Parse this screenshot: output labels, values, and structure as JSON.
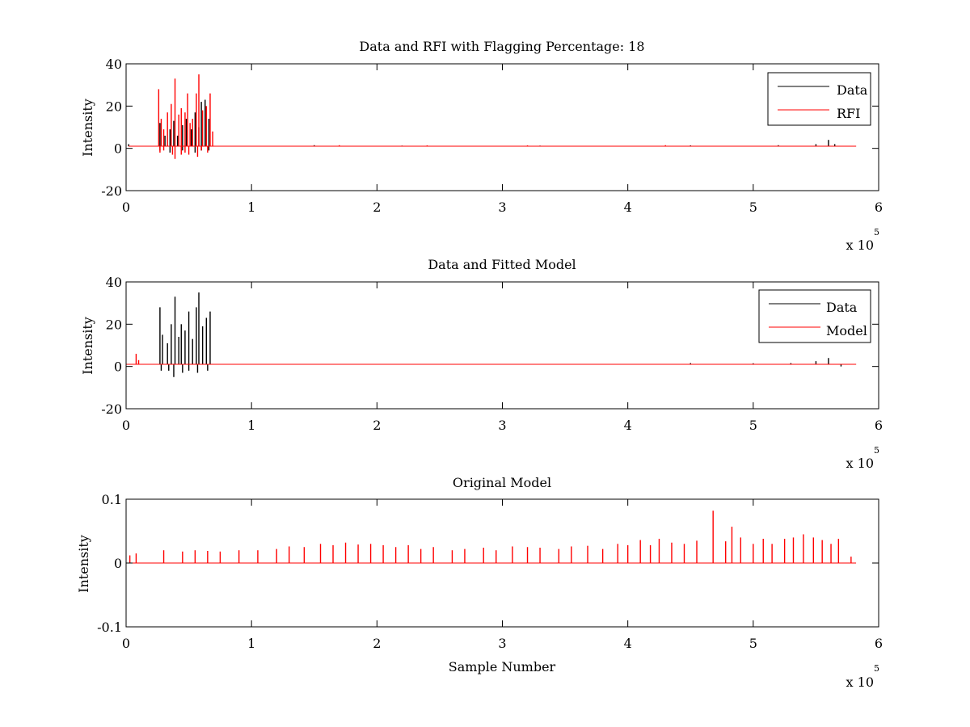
{
  "figure": {
    "background": "#ffffff",
    "colors": {
      "data": "#000000",
      "rfi": "#ff0000",
      "axes": "#000000"
    }
  },
  "chart_data": [
    {
      "type": "line",
      "title": "Data and RFI with Flagging Percentage: 18",
      "xlabel": "",
      "ylabel": "Intensity",
      "xlim": [
        0,
        6
      ],
      "ylim": [
        -20,
        40
      ],
      "x_ticks": [
        "0",
        "1",
        "2",
        "3",
        "4",
        "5",
        "6"
      ],
      "y_ticks": [
        "-20",
        "0",
        "20",
        "40"
      ],
      "x_exponent": {
        "base": "x 10",
        "power": "5"
      },
      "legend": {
        "position": "top-right",
        "entries": [
          "Data",
          "RFI"
        ]
      },
      "baseline": 1,
      "series": [
        {
          "name": "Data",
          "color": "#000000",
          "spikes": [
            [
              0.02,
              2
            ],
            [
              0.27,
              12
            ],
            [
              0.31,
              6
            ],
            [
              0.35,
              9
            ],
            [
              0.38,
              13
            ],
            [
              0.41,
              6
            ],
            [
              0.45,
              11
            ],
            [
              0.48,
              14
            ],
            [
              0.52,
              9
            ],
            [
              0.55,
              17
            ],
            [
              0.58,
              10
            ],
            [
              0.6,
              22
            ],
            [
              0.63,
              23
            ],
            [
              0.66,
              14
            ],
            [
              1.5,
              1.5
            ],
            [
              2.2,
              1.3
            ],
            [
              3.3,
              1.3
            ],
            [
              4.5,
              1.4
            ],
            [
              5.2,
              1.5
            ],
            [
              5.5,
              2
            ],
            [
              5.6,
              4
            ],
            [
              5.65,
              2
            ]
          ],
          "dips": [
            [
              0.27,
              -1
            ],
            [
              0.35,
              -2
            ],
            [
              0.45,
              -1
            ],
            [
              0.55,
              -2
            ],
            [
              0.6,
              -1
            ],
            [
              0.66,
              -1
            ]
          ]
        },
        {
          "name": "RFI",
          "color": "#ff0000",
          "spikes": [
            [
              0.26,
              28
            ],
            [
              0.28,
              14
            ],
            [
              0.3,
              9
            ],
            [
              0.33,
              17
            ],
            [
              0.36,
              21
            ],
            [
              0.39,
              33
            ],
            [
              0.42,
              16
            ],
            [
              0.44,
              19
            ],
            [
              0.47,
              17
            ],
            [
              0.49,
              26
            ],
            [
              0.51,
              12
            ],
            [
              0.53,
              14
            ],
            [
              0.56,
              26
            ],
            [
              0.58,
              35
            ],
            [
              0.61,
              18
            ],
            [
              0.64,
              20
            ],
            [
              0.67,
              26
            ],
            [
              0.69,
              8
            ],
            [
              1.7,
              1.5
            ],
            [
              2.4,
              1.4
            ],
            [
              3.2,
              1.4
            ],
            [
              4.3,
              1.5
            ]
          ],
          "dips": [
            [
              0.27,
              -2
            ],
            [
              0.3,
              -1
            ],
            [
              0.37,
              -3
            ],
            [
              0.39,
              -5
            ],
            [
              0.44,
              -3
            ],
            [
              0.47,
              -2
            ],
            [
              0.5,
              -3
            ],
            [
              0.57,
              -4
            ],
            [
              0.6,
              -1
            ],
            [
              0.65,
              -2
            ]
          ]
        }
      ]
    },
    {
      "type": "line",
      "title": "Data and Fitted Model",
      "xlabel": "",
      "ylabel": "Intensity",
      "xlim": [
        0,
        6
      ],
      "ylim": [
        -20,
        40
      ],
      "x_ticks": [
        "0",
        "1",
        "2",
        "3",
        "4",
        "5",
        "6"
      ],
      "y_ticks": [
        "-20",
        "0",
        "20",
        "40"
      ],
      "x_exponent": {
        "base": "x 10",
        "power": "5"
      },
      "legend": {
        "position": "top-right",
        "entries": [
          "Data",
          "Model"
        ]
      },
      "baseline": 1,
      "series": [
        {
          "name": "Data",
          "color": "#000000",
          "spikes": [
            [
              0.27,
              28
            ],
            [
              0.29,
              15
            ],
            [
              0.33,
              11
            ],
            [
              0.36,
              20
            ],
            [
              0.39,
              33
            ],
            [
              0.42,
              14
            ],
            [
              0.44,
              20
            ],
            [
              0.47,
              17
            ],
            [
              0.5,
              26
            ],
            [
              0.53,
              13
            ],
            [
              0.56,
              28
            ],
            [
              0.58,
              35
            ],
            [
              0.61,
              19
            ],
            [
              0.64,
              23
            ],
            [
              0.67,
              26
            ],
            [
              4.5,
              1.6
            ],
            [
              5.0,
              1.5
            ],
            [
              5.3,
              1.6
            ],
            [
              5.5,
              2.5
            ],
            [
              5.6,
              4
            ]
          ],
          "dips": [
            [
              0.28,
              -2
            ],
            [
              0.34,
              -2
            ],
            [
              0.38,
              -5
            ],
            [
              0.45,
              -3
            ],
            [
              0.5,
              -2
            ],
            [
              0.57,
              -3
            ],
            [
              0.65,
              -2
            ],
            [
              5.7,
              0
            ]
          ]
        },
        {
          "name": "Model",
          "color": "#ff0000",
          "spikes": [
            [
              0.08,
              6
            ],
            [
              0.1,
              3
            ]
          ],
          "dips": []
        }
      ]
    },
    {
      "type": "line",
      "title": "Original Model",
      "xlabel": "Sample Number",
      "ylabel": "Intensity",
      "xlim": [
        0,
        6
      ],
      "ylim": [
        -0.1,
        0.1
      ],
      "x_ticks": [
        "0",
        "1",
        "2",
        "3",
        "4",
        "5",
        "6"
      ],
      "y_ticks": [
        "-0.1",
        "0",
        "0.1"
      ],
      "x_exponent": {
        "base": "x 10",
        "power": "5"
      },
      "legend": null,
      "baseline": 0,
      "series": [
        {
          "name": "Model",
          "color": "#ff0000",
          "spikes": [
            [
              0.03,
              0.012
            ],
            [
              0.08,
              0.015
            ],
            [
              0.3,
              0.02
            ],
            [
              0.45,
              0.018
            ],
            [
              0.55,
              0.02
            ],
            [
              0.65,
              0.019
            ],
            [
              0.75,
              0.018
            ],
            [
              0.9,
              0.02
            ],
            [
              1.05,
              0.02
            ],
            [
              1.2,
              0.022
            ],
            [
              1.3,
              0.026
            ],
            [
              1.42,
              0.025
            ],
            [
              1.55,
              0.03
            ],
            [
              1.65,
              0.028
            ],
            [
              1.75,
              0.032
            ],
            [
              1.85,
              0.029
            ],
            [
              1.95,
              0.03
            ],
            [
              2.05,
              0.028
            ],
            [
              2.15,
              0.025
            ],
            [
              2.25,
              0.028
            ],
            [
              2.35,
              0.022
            ],
            [
              2.45,
              0.025
            ],
            [
              2.6,
              0.02
            ],
            [
              2.7,
              0.022
            ],
            [
              2.85,
              0.024
            ],
            [
              2.95,
              0.02
            ],
            [
              3.08,
              0.026
            ],
            [
              3.2,
              0.025
            ],
            [
              3.3,
              0.024
            ],
            [
              3.45,
              0.022
            ],
            [
              3.55,
              0.026
            ],
            [
              3.68,
              0.027
            ],
            [
              3.8,
              0.022
            ],
            [
              3.92,
              0.03
            ],
            [
              4.0,
              0.028
            ],
            [
              4.1,
              0.036
            ],
            [
              4.18,
              0.028
            ],
            [
              4.25,
              0.038
            ],
            [
              4.35,
              0.032
            ],
            [
              4.45,
              0.03
            ],
            [
              4.55,
              0.035
            ],
            [
              4.68,
              0.082
            ],
            [
              4.78,
              0.034
            ],
            [
              4.83,
              0.057
            ],
            [
              4.9,
              0.04
            ],
            [
              5.0,
              0.03
            ],
            [
              5.08,
              0.038
            ],
            [
              5.15,
              0.03
            ],
            [
              5.25,
              0.038
            ],
            [
              5.32,
              0.04
            ],
            [
              5.4,
              0.045
            ],
            [
              5.48,
              0.04
            ],
            [
              5.55,
              0.036
            ],
            [
              5.62,
              0.03
            ],
            [
              5.68,
              0.038
            ],
            [
              5.78,
              0.01
            ]
          ],
          "dips": []
        }
      ]
    }
  ]
}
